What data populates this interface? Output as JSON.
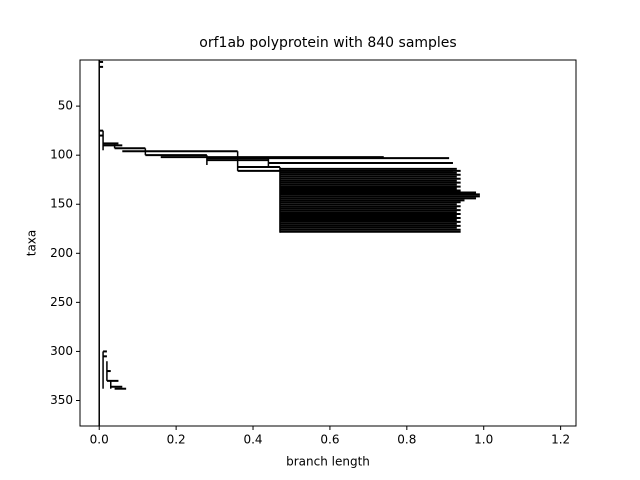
{
  "chart_data": {
    "type": "tree",
    "title": "orf1ab polyprotein with 840 samples",
    "xlabel": "branch length",
    "ylabel": "taxa",
    "xlim": [
      -0.05,
      1.24
    ],
    "ylim": [
      376,
      3
    ],
    "xticks": [
      {
        "value": 0,
        "label": "0.0"
      },
      0.2,
      0.4,
      0.6,
      0.8,
      {
        "value": 1,
        "label": "1.0"
      },
      1.2
    ],
    "yticks": [
      50,
      100,
      150,
      200,
      250,
      300,
      350
    ],
    "color": "#000000",
    "connectors": [
      [
        0,
        3,
        376
      ],
      [
        0.01,
        75,
        95
      ],
      [
        0.04,
        88,
        93
      ],
      [
        0.12,
        93,
        100
      ],
      [
        0.28,
        100,
        110
      ],
      [
        0.36,
        96,
        116
      ],
      [
        0.44,
        102,
        112
      ],
      [
        0.47,
        112,
        179
      ],
      [
        0.01,
        300,
        338
      ],
      [
        0.02,
        310,
        330
      ],
      [
        0.03,
        330,
        338
      ]
    ],
    "branches": [
      [
        0,
        0.01,
        5
      ],
      [
        0,
        0.01,
        10
      ],
      [
        0,
        0.01,
        75
      ],
      [
        0,
        0.01,
        80
      ],
      [
        0.01,
        0.05,
        88
      ],
      [
        0.01,
        0.06,
        90
      ],
      [
        0.04,
        0.12,
        93
      ],
      [
        0.06,
        0.36,
        96
      ],
      [
        0.12,
        0.28,
        100
      ],
      [
        0.16,
        0.74,
        102
      ],
      [
        0.28,
        0.91,
        103
      ],
      [
        0.28,
        0.44,
        105
      ],
      [
        0.44,
        0.92,
        108
      ],
      [
        0.36,
        0.47,
        112
      ],
      [
        0.36,
        0.92,
        116
      ],
      [
        0.47,
        0.93,
        114
      ],
      [
        0.47,
        0.94,
        116
      ],
      [
        0.47,
        0.93,
        118
      ],
      [
        0.47,
        0.94,
        120
      ],
      [
        0.47,
        0.93,
        122
      ],
      [
        0.47,
        0.94,
        124
      ],
      [
        0.47,
        0.93,
        126
      ],
      [
        0.47,
        0.94,
        128
      ],
      [
        0.47,
        0.93,
        130
      ],
      [
        0.47,
        0.94,
        132
      ],
      [
        0.47,
        0.93,
        134
      ],
      [
        0.47,
        0.94,
        136
      ],
      [
        0.47,
        0.98,
        138
      ],
      [
        0.47,
        0.99,
        140
      ],
      [
        0.47,
        0.99,
        142
      ],
      [
        0.47,
        0.98,
        144
      ],
      [
        0.47,
        0.95,
        146
      ],
      [
        0.47,
        0.94,
        148
      ],
      [
        0.47,
        0.93,
        150
      ],
      [
        0.47,
        0.94,
        152
      ],
      [
        0.47,
        0.93,
        154
      ],
      [
        0.47,
        0.94,
        156
      ],
      [
        0.47,
        0.93,
        158
      ],
      [
        0.47,
        0.94,
        160
      ],
      [
        0.47,
        0.93,
        162
      ],
      [
        0.47,
        0.94,
        164
      ],
      [
        0.47,
        0.93,
        166
      ],
      [
        0.47,
        0.94,
        168
      ],
      [
        0.47,
        0.93,
        170
      ],
      [
        0.47,
        0.94,
        172
      ],
      [
        0.47,
        0.93,
        174
      ],
      [
        0.47,
        0.94,
        176
      ],
      [
        0.47,
        0.94,
        178
      ],
      [
        0.01,
        0.02,
        300
      ],
      [
        0.01,
        0.02,
        305
      ],
      [
        0.02,
        0.03,
        320
      ],
      [
        0.02,
        0.05,
        330
      ],
      [
        0.03,
        0.06,
        336
      ],
      [
        0.04,
        0.07,
        338
      ]
    ]
  }
}
